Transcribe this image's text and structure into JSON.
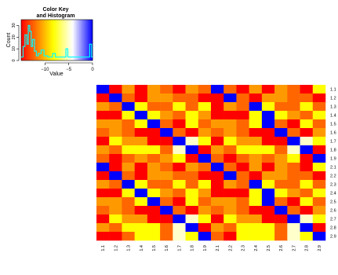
{
  "chart_data": [
    {
      "type": "histogram",
      "title": "Color Key\nand Histogram",
      "xlabel": "Value",
      "ylabel": "Count",
      "xlim": [
        -15,
        0
      ],
      "ylim": [
        0,
        35
      ],
      "x_ticks": [
        -10,
        -5,
        0
      ],
      "y_ticks": [
        0,
        10,
        20,
        30
      ],
      "x_ticks_labels": [
        "−10",
        "−5",
        "0"
      ],
      "gradient_colors": [
        "#ff0000",
        "#ffff00",
        "#ffffff",
        "#0000ff"
      ],
      "density_color": "#00ffff",
      "density_curve": [
        [
          -15,
          3
        ],
        [
          -14.6,
          3
        ],
        [
          -14.6,
          12
        ],
        [
          -14.2,
          12
        ],
        [
          -14.2,
          22
        ],
        [
          -13.8,
          22
        ],
        [
          -13.8,
          14
        ],
        [
          -13.5,
          14
        ],
        [
          -13.5,
          30
        ],
        [
          -13.2,
          30
        ],
        [
          -13.2,
          25
        ],
        [
          -12.9,
          25
        ],
        [
          -12.9,
          12
        ],
        [
          -12.6,
          12
        ],
        [
          -12.6,
          18
        ],
        [
          -12.2,
          18
        ],
        [
          -12.2,
          8
        ],
        [
          -11.8,
          8
        ],
        [
          -11.8,
          4
        ],
        [
          -11.4,
          4
        ],
        [
          -11.4,
          6
        ],
        [
          -10.8,
          6
        ],
        [
          -10.8,
          9
        ],
        [
          -10.2,
          9
        ],
        [
          -10.2,
          4
        ],
        [
          -9.4,
          4
        ],
        [
          -9.4,
          3
        ],
        [
          -8.4,
          3
        ],
        [
          -8.4,
          6
        ],
        [
          -7.8,
          6
        ],
        [
          -7.8,
          3
        ],
        [
          -5.6,
          3
        ],
        [
          -5.6,
          10
        ],
        [
          -5.2,
          10
        ],
        [
          -5.2,
          3
        ],
        [
          -0.6,
          3
        ],
        [
          -0.6,
          14
        ],
        [
          -0.2,
          14
        ],
        [
          -0.2,
          3
        ],
        [
          0,
          3
        ]
      ]
    },
    {
      "type": "heatmap",
      "rows": [
        "1.1",
        "1.2",
        "1.3",
        "1.4",
        "1.5",
        "1.6",
        "1.7",
        "1.8",
        "1.9",
        "2.1",
        "2.2",
        "2.3",
        "2.4",
        "2.5",
        "2.6",
        "2.7",
        "2.8",
        "2.9"
      ],
      "columns": [
        "1.1",
        "1.2",
        "1.3",
        "1.4",
        "1.5",
        "1.6",
        "1.7",
        "1.8",
        "1.9",
        "2.1",
        "2.2",
        "2.3",
        "2.4",
        "2.5",
        "2.6",
        "2.7",
        "2.8",
        "2.9"
      ],
      "palette": {
        "B": "#0000ff",
        "R": "#ff0000",
        "O": "#ff6600",
        "A": "#ff9900",
        "Y": "#ffff00",
        "W": "#ffffcc"
      },
      "cells": [
        "BRARAORAOBORARAORY",
        "RBORAAOORRBORAAOOR",
        "AOBYOOYOYRAOBYOOYO",
        "RRYBYAOYARRRYBYAOY",
        "AAOYBORYOAAOYBORYO",
        "OAORRBORAOAORRBORA",
        "RYAARRBWYRYAARRBWY",
        "AOYYYOWBRAOYYYOWBR",
        "OROAOAYRBOROAOAYRB",
        "BRARAORAOBORARAORY",
        "RBORAAOORRBORAAOOR",
        "AOBYOOYOYRAOBYOOYO",
        "RRYBYAOYARRRYBYAOY",
        "AAOYBORYOAAOYBORYO",
        "OAORRBORAOAORRBORA",
        "RYAARRBWYRYAARRBWY",
        "AOYYYOWBRAOYYYOWBR",
        "RROYYOWYBORYYYOWYB"
      ]
    }
  ]
}
